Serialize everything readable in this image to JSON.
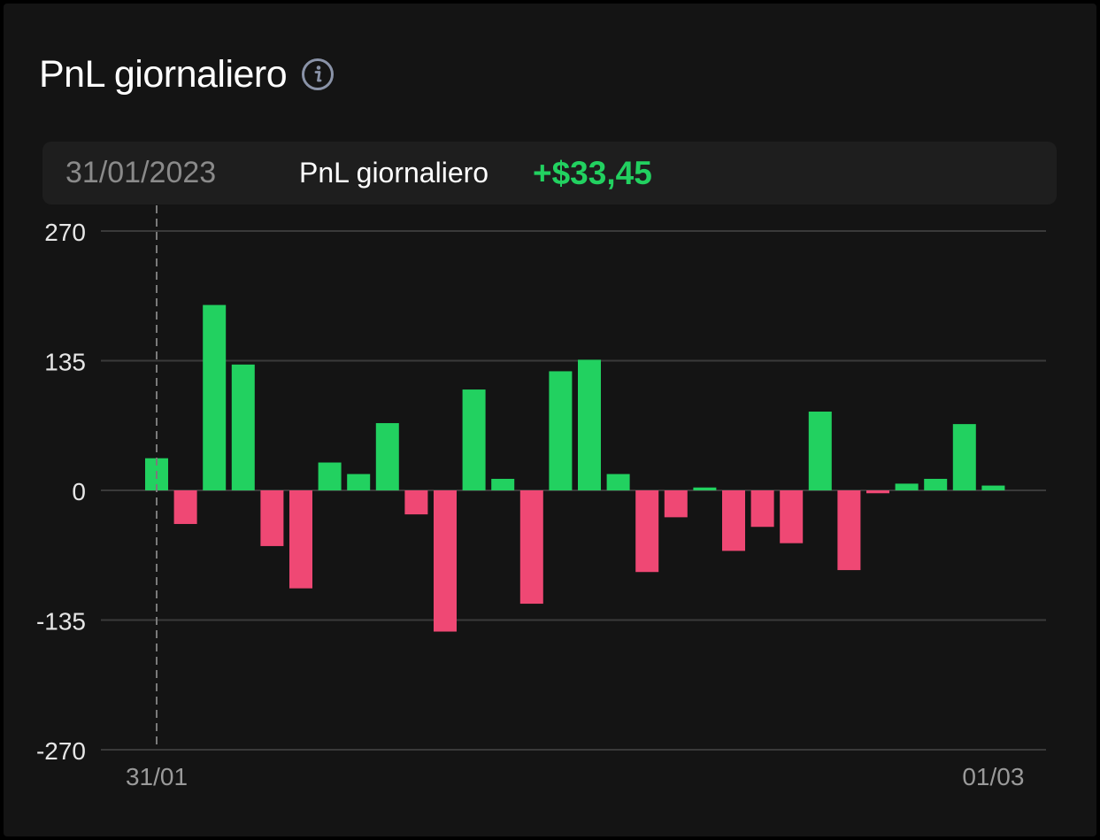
{
  "title": "PnL giornaliero",
  "info_icon": "info-icon",
  "tooltip": {
    "date": "31/01/2023",
    "label": "PnL giornaliero",
    "value": "+$33,45"
  },
  "colors": {
    "positive": "#22d160",
    "negative": "#ef4874",
    "grid": "#3a3a3a",
    "axis_text": "#e6e6e6",
    "date_text": "#9a9a9a",
    "background": "#141414"
  },
  "chart_data": {
    "type": "bar",
    "title": "PnL giornaliero",
    "xlabel": "",
    "ylabel": "",
    "ylim": [
      -270,
      270
    ],
    "yticks": [
      270,
      135,
      0,
      -135,
      -270
    ],
    "ytick_labels": [
      "270",
      "135",
      "0",
      "-135",
      "-270"
    ],
    "xtick_labels": [
      "31/01",
      "01/03"
    ],
    "xtick_positions": [
      0,
      29
    ],
    "highlight_index": 0,
    "grid": true,
    "values": [
      33.45,
      -35,
      193,
      131,
      -58,
      -102,
      29,
      17,
      70,
      -25,
      -147,
      105,
      12,
      -118,
      124,
      136,
      17,
      -85,
      -28,
      3,
      -63,
      -38,
      -55,
      82,
      -83,
      -3,
      7,
      12,
      69,
      5
    ]
  }
}
